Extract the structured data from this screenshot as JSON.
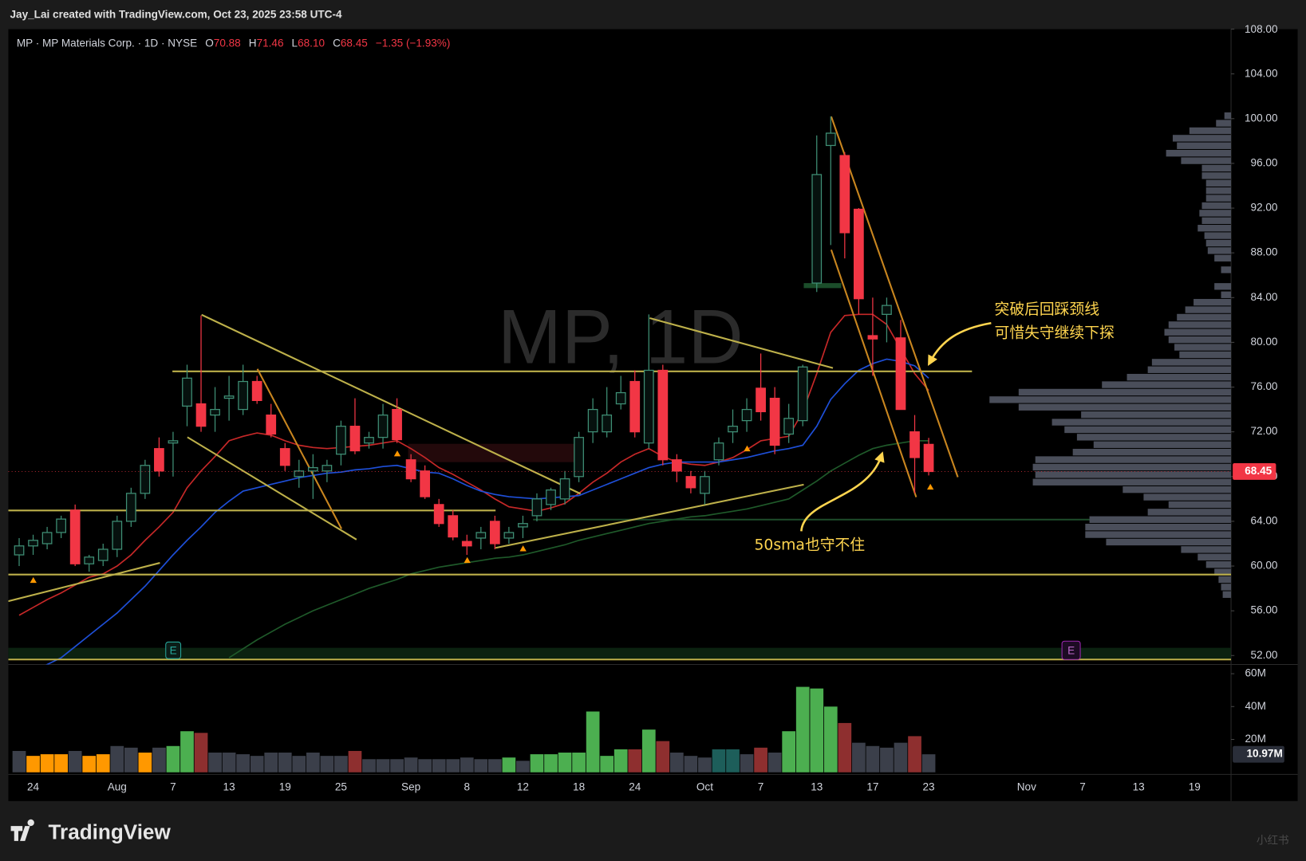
{
  "page_header": "Jay_Lai created with TradingView.com, Oct 23, 2025 23:58 UTC-4",
  "footer_brand": "TradingView",
  "corner_watermark": "小红书",
  "chart_data": {
    "type": "candlestick",
    "legend_title": "MP · MP Materials Corp. · 1D · NYSE",
    "ohlc_legend": [
      {
        "label": "O",
        "value": "70.88"
      },
      {
        "label": "H",
        "value": "71.46"
      },
      {
        "label": "L",
        "value": "68.10"
      },
      {
        "label": "C",
        "value": "68.45"
      }
    ],
    "change_label": "−1.35 (−1.93%)",
    "watermark": "MP, 1D",
    "categories": [
      null,
      "24",
      null,
      null,
      null,
      null,
      null,
      "Aug",
      null,
      null,
      null,
      "7",
      null,
      null,
      null,
      "13",
      null,
      null,
      null,
      "19",
      null,
      null,
      null,
      "25",
      null,
      null,
      null,
      null,
      "Sep",
      null,
      null,
      null,
      "8",
      null,
      null,
      null,
      "12",
      null,
      null,
      null,
      "18",
      null,
      null,
      null,
      "24",
      null,
      null,
      null,
      null,
      "Oct",
      null,
      null,
      null,
      "7",
      null,
      null,
      null,
      "13",
      null,
      null,
      null,
      "17",
      null,
      null,
      null,
      "23",
      null,
      null,
      null,
      null,
      null,
      null,
      "Nov",
      null,
      null,
      null,
      "7",
      null,
      null,
      null,
      "13",
      null,
      null,
      null,
      "19",
      null,
      null
    ],
    "open": [
      61,
      61.8,
      62,
      63,
      65,
      60.2,
      60.5,
      61.5,
      64,
      66.5,
      70.5,
      71,
      74.3,
      74.5,
      73.5,
      75,
      74,
      76.5,
      73.5,
      70.5,
      68,
      68.5,
      68.5,
      70,
      72.5,
      71,
      71.5,
      74,
      69.5,
      68.5,
      65.5,
      64.5,
      62.2,
      62.5,
      64,
      62.5,
      63.5,
      64.5,
      65.5,
      66,
      68,
      72,
      72,
      74.5,
      76.5,
      71,
      77.5,
      69.5,
      68,
      66.5,
      69.5,
      72,
      73,
      75.9,
      75,
      71.8,
      73,
      85.3,
      97.6,
      96.7,
      91.9,
      80.6,
      82.5,
      80.4,
      72,
      70.88,
      null,
      null,
      null,
      null,
      null,
      null,
      null,
      null,
      null,
      null,
      null,
      null,
      null,
      null,
      null,
      null,
      null,
      null,
      null,
      null,
      null
    ],
    "high": [
      62.5,
      62.8,
      63.5,
      64.5,
      65.5,
      61,
      62,
      64.5,
      67,
      69.5,
      71.5,
      72,
      78,
      82.4,
      76,
      77,
      78,
      77,
      74.5,
      71,
      69.5,
      70,
      69.5,
      73,
      75,
      72,
      74.5,
      75,
      70,
      69,
      66,
      65,
      62.8,
      63.5,
      64.5,
      63.5,
      64.5,
      66.5,
      67,
      68.5,
      72,
      75,
      76,
      77,
      77.5,
      82.5,
      78,
      70,
      68.5,
      68.5,
      71.5,
      74,
      75,
      79,
      76,
      74.5,
      78,
      98.5,
      100.2,
      97,
      92,
      84,
      84,
      82,
      73.5,
      71.46,
      null,
      null,
      null,
      null,
      null,
      null,
      null,
      null,
      null,
      null,
      null,
      null,
      null,
      null,
      null,
      null,
      null,
      null,
      null,
      null,
      null
    ],
    "low": [
      60,
      61,
      61.5,
      62.5,
      60,
      59.5,
      60,
      60.8,
      63.5,
      66,
      68,
      68,
      72.5,
      72,
      72,
      73,
      73.5,
      74.5,
      71.5,
      68.5,
      67,
      66,
      67.5,
      69,
      70,
      70.5,
      70.5,
      71,
      67.5,
      66,
      63.5,
      62.3,
      61,
      61.5,
      61.5,
      62,
      62.5,
      64,
      65,
      65.5,
      67.5,
      71,
      71.5,
      74,
      71.5,
      70.5,
      69,
      67.5,
      66.5,
      65.5,
      69,
      71,
      72,
      73,
      70,
      71,
      72.5,
      84.5,
      88.7,
      87.5,
      82.5,
      77,
      80,
      74,
      66.5,
      68.1,
      null,
      null,
      null,
      null,
      null,
      null,
      null,
      null,
      null,
      null,
      null,
      null,
      null,
      null,
      null,
      null,
      null,
      null,
      null,
      null,
      null
    ],
    "close": [
      61.8,
      62.3,
      63,
      64.2,
      60.2,
      60.8,
      61.5,
      64,
      66.5,
      69,
      68.5,
      71.2,
      76.8,
      72.5,
      74,
      75.2,
      76.5,
      74.8,
      71.8,
      69,
      68.5,
      68.8,
      69,
      72.5,
      70.3,
      71.5,
      73.5,
      71.3,
      67.8,
      66.2,
      63.8,
      62.6,
      61.8,
      63,
      62,
      63,
      63.8,
      66,
      66.8,
      67.8,
      71.5,
      74,
      73.5,
      75.5,
      72,
      77.5,
      69.5,
      68.5,
      67,
      68,
      71,
      72.5,
      74,
      73.8,
      70.8,
      73.2,
      77.8,
      95,
      98.7,
      89.8,
      83.9,
      80.3,
      83.3,
      74,
      69.7,
      68.45,
      null,
      null,
      null,
      null,
      null,
      null,
      null,
      null,
      null,
      null,
      null,
      null,
      null,
      null,
      null,
      null,
      null,
      null,
      null,
      null,
      null
    ],
    "up_color": "#3f8f75",
    "down_color": "#f23645",
    "ylim": [
      51.2,
      108
    ],
    "yticks": [
      {
        "value": 52,
        "label": "52.00"
      },
      {
        "value": 56,
        "label": "56.00"
      },
      {
        "value": 60,
        "label": "60.00"
      },
      {
        "value": 64,
        "label": "64.00"
      },
      {
        "value": 68,
        "label": "68.00"
      },
      {
        "value": 72,
        "label": "72.00"
      },
      {
        "value": 76,
        "label": "76.00"
      },
      {
        "value": 80,
        "label": "80.00"
      },
      {
        "value": 84,
        "label": "84.00"
      },
      {
        "value": 88,
        "label": "88.00"
      },
      {
        "value": 92,
        "label": "92.00"
      },
      {
        "value": 96,
        "label": "96.00"
      },
      {
        "value": 100,
        "label": "100.00"
      },
      {
        "value": 104,
        "label": "104.00"
      },
      {
        "value": 108,
        "label": "108.00"
      }
    ],
    "grid": false,
    "last_price": {
      "value": 68.45,
      "label": "68.45",
      "color": "#f23645"
    },
    "moving_averages": [
      {
        "color": "#c62828",
        "values": [
          55.6,
          56.3,
          57,
          57.6,
          58.3,
          59,
          59.3,
          60,
          61,
          62.3,
          63.5,
          64.8,
          67,
          68.5,
          69.8,
          71.2,
          71.6,
          71.9,
          71.7,
          71.2,
          70.8,
          70.6,
          70.5,
          70.6,
          70.7,
          70.8,
          71,
          71.2,
          70.5,
          69.7,
          68.8,
          68.2,
          67.5,
          66.8,
          66,
          65.3,
          65.1,
          64.9,
          65.2,
          65.6,
          66.5,
          67.5,
          68.3,
          69.3,
          70,
          70.5,
          69.8,
          69.3,
          69.1,
          69,
          69.3,
          69.7,
          70.4,
          71.2,
          71.4,
          71.6,
          73.8,
          77.2,
          80.9,
          82.4,
          82.5,
          82.5,
          81.6,
          79.4,
          77.2,
          75.7,
          null,
          null,
          null,
          null,
          null,
          null,
          null,
          null,
          null,
          null,
          null,
          null,
          null,
          null,
          null,
          null,
          null,
          null,
          null,
          null,
          null
        ]
      },
      {
        "color": "#1e4fd8",
        "values": [
          50,
          50.6,
          51.2,
          51.8,
          52.8,
          53.8,
          54.8,
          55.8,
          57,
          58.2,
          59.6,
          61,
          62.3,
          63.5,
          64.8,
          65.8,
          66.7,
          67,
          67.3,
          67.6,
          67.9,
          68.1,
          68.3,
          68.4,
          68.6,
          68.7,
          68.9,
          69,
          68.7,
          68.4,
          68.3,
          67.8,
          67.2,
          66.7,
          66.4,
          66.2,
          66.1,
          66,
          66.1,
          66.2,
          66.3,
          66.8,
          67.3,
          67.8,
          68.3,
          68.8,
          69.1,
          69.3,
          69.3,
          69.3,
          69.3,
          69.5,
          69.7,
          70,
          70.3,
          70.5,
          70.8,
          72.5,
          74.9,
          76.3,
          77.5,
          78.1,
          78.5,
          78.3,
          77.9,
          76.8,
          null,
          null,
          null,
          null,
          null,
          null,
          null,
          null,
          null,
          null,
          null,
          null,
          null,
          null,
          null,
          null,
          null,
          null,
          null,
          null,
          null
        ]
      },
      {
        "color": "#1f5a2a",
        "values": [
          null,
          null,
          null,
          null,
          null,
          null,
          null,
          null,
          null,
          null,
          null,
          null,
          null,
          null,
          null,
          51.8,
          52.6,
          53.4,
          54.1,
          54.8,
          55.4,
          56,
          56.5,
          57,
          57.5,
          58,
          58.4,
          58.8,
          59.3,
          59.6,
          59.9,
          60.1,
          60.3,
          60.5,
          60.7,
          60.8,
          61,
          61.3,
          61.6,
          61.9,
          62.3,
          62.6,
          62.9,
          63.2,
          63.5,
          63.8,
          64,
          64.2,
          64.4,
          64.5,
          64.7,
          64.9,
          65.1,
          65.4,
          65.7,
          66,
          66.8,
          67.6,
          68.5,
          69.2,
          69.9,
          70.5,
          70.8,
          71,
          71.2,
          71.2,
          null,
          null,
          null,
          null,
          null,
          null,
          null,
          null,
          null,
          null,
          null,
          null,
          null,
          null,
          null,
          null,
          null,
          null,
          null,
          null,
          null
        ]
      }
    ],
    "volume": {
      "values": [
        13,
        10,
        11,
        11,
        13,
        10,
        11,
        16,
        15,
        12,
        15,
        16,
        25,
        24,
        12,
        12,
        11,
        10,
        12,
        12,
        10,
        12,
        10,
        10,
        13,
        8,
        8,
        8,
        9,
        8,
        8,
        8,
        9,
        8,
        8,
        9,
        7,
        11,
        11,
        12,
        12,
        37,
        10,
        14,
        14,
        26,
        19,
        12,
        10,
        9,
        14,
        14,
        11,
        15,
        12,
        25,
        52,
        51,
        40,
        30,
        18,
        16,
        15,
        18,
        22,
        10.97,
        null,
        null,
        null,
        null,
        null,
        null,
        null,
        null,
        null,
        null,
        null,
        null,
        null,
        null,
        null,
        null,
        null,
        null,
        null,
        null,
        null
      ],
      "colors": [
        "#3b3f4a",
        "#ff9800",
        "#ff9800",
        "#ff9800",
        "#3b3f4a",
        "#ff9800",
        "#ff9800",
        "#3b3f4a",
        "#3b3f4a",
        "#ff9800",
        "#3b3f4a",
        "#4caf50",
        "#4caf50",
        "#8e2f2f",
        "#3b3f4a",
        "#3b3f4a",
        "#3b3f4a",
        "#3b3f4a",
        "#3b3f4a",
        "#3b3f4a",
        "#3b3f4a",
        "#3b3f4a",
        "#3b3f4a",
        "#3b3f4a",
        "#8e2f2f",
        "#3b3f4a",
        "#3b3f4a",
        "#3b3f4a",
        "#3b3f4a",
        "#3b3f4a",
        "#3b3f4a",
        "#3b3f4a",
        "#3b3f4a",
        "#3b3f4a",
        "#3b3f4a",
        "#4caf50",
        "#3b3f4a",
        "#4caf50",
        "#4caf50",
        "#4caf50",
        "#4caf50",
        "#4caf50",
        "#4caf50",
        "#4caf50",
        "#8e2f2f",
        "#4caf50",
        "#8e2f2f",
        "#3b3f4a",
        "#3b3f4a",
        "#3b3f4a",
        "#1d5e5a",
        "#1d5e5a",
        "#3b3f4a",
        "#8e2f2f",
        "#3b3f4a",
        "#4caf50",
        "#4caf50",
        "#4caf50",
        "#4caf50",
        "#8e2f2f",
        "#3b3f4a",
        "#3b3f4a",
        "#3b3f4a",
        "#3b3f4a",
        "#8e2f2f",
        "#3b3f4a",
        null,
        null,
        null,
        null,
        null,
        null,
        null,
        null,
        null,
        null,
        null,
        null,
        null,
        null,
        null,
        null,
        null,
        null,
        null,
        null,
        null
      ],
      "ylim": [
        0,
        64.6
      ],
      "yticks": [
        {
          "value": 20,
          "label": "20M"
        },
        {
          "value": 40,
          "label": "40M"
        },
        {
          "value": 60,
          "label": "60M"
        }
      ],
      "last": {
        "value": 10.97,
        "label": "10.97M"
      }
    },
    "annotations": [
      {
        "text": "突破后回踩颈线"
      },
      {
        "text": "可惜失守继续下探"
      },
      {
        "text": "50sma也守不住"
      }
    ],
    "earnings_markers": [
      "E",
      "E"
    ]
  }
}
